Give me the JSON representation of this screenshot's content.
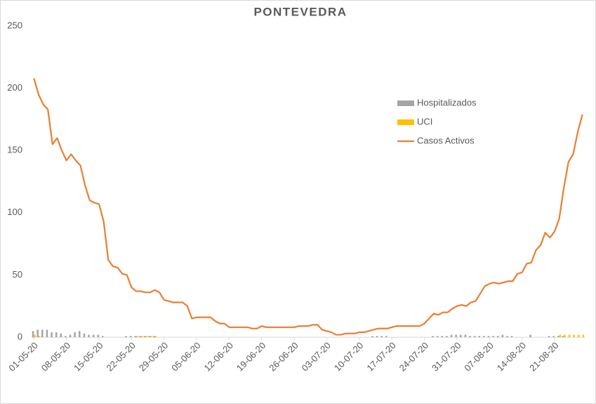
{
  "chart_data": {
    "type": "combo",
    "title": "PONTEVEDRA",
    "categories": [
      "01-05-20",
      null,
      null,
      null,
      null,
      null,
      null,
      "08-05-20",
      null,
      null,
      null,
      null,
      null,
      null,
      "15-05-20",
      null,
      null,
      null,
      null,
      null,
      null,
      "22-05-20",
      null,
      null,
      null,
      null,
      null,
      null,
      "29-05-20",
      null,
      null,
      null,
      null,
      null,
      null,
      "05-06-20",
      null,
      null,
      null,
      null,
      null,
      null,
      "12-06-20",
      null,
      null,
      null,
      null,
      null,
      null,
      "19-06-20",
      null,
      null,
      null,
      null,
      null,
      null,
      "26-06-20",
      null,
      null,
      null,
      null,
      null,
      null,
      "03-07-20",
      null,
      null,
      null,
      null,
      null,
      null,
      "10-07-20",
      null,
      null,
      null,
      null,
      null,
      null,
      "17-07-20",
      null,
      null,
      null,
      null,
      null,
      null,
      "24-07-20",
      null,
      null,
      null,
      null,
      null,
      null,
      "31-07-20",
      null,
      null,
      null,
      null,
      null,
      null,
      "07-08-20",
      null,
      null,
      null,
      null,
      null,
      null,
      "14-08-20",
      null,
      null,
      null,
      null,
      null,
      null,
      "21-08-20",
      null,
      null,
      null,
      null,
      null,
      null
    ],
    "series": [
      {
        "name": "Hospitalizados",
        "type": "bar",
        "color": "#a5a5a5",
        "values": [
          5,
          6,
          6,
          6,
          4,
          4,
          3,
          1,
          2,
          4,
          5,
          3,
          2,
          2,
          2,
          1,
          0,
          0,
          0,
          0,
          1,
          1,
          1,
          1,
          1,
          1,
          1,
          0,
          0,
          0,
          0,
          0,
          0,
          0,
          0,
          0,
          0,
          0,
          0,
          0,
          0,
          0,
          0,
          0,
          0,
          0,
          0,
          0,
          0,
          0,
          0,
          0,
          0,
          0,
          0,
          0,
          0,
          0,
          0,
          0,
          0,
          0,
          0,
          0,
          0,
          0,
          0,
          0,
          0,
          0,
          0,
          0,
          0,
          1,
          1,
          1,
          1,
          0,
          0,
          0,
          0,
          0,
          0,
          0,
          0,
          0,
          1,
          1,
          1,
          1,
          2,
          2,
          2,
          2,
          1,
          1,
          1,
          1,
          1,
          1,
          1,
          2,
          1,
          1,
          0,
          0,
          0,
          2,
          0,
          0,
          0,
          1,
          1,
          1,
          1,
          0,
          0,
          0,
          0
        ]
      },
      {
        "name": "UCI",
        "type": "bar",
        "color": "#ffc000",
        "values": [
          2,
          1,
          0,
          0,
          0,
          0,
          0,
          0,
          0,
          0,
          0,
          0,
          0,
          0,
          0,
          0,
          0,
          0,
          0,
          0,
          0,
          0,
          1,
          1,
          1,
          1,
          1,
          0,
          0,
          0,
          0,
          0,
          0,
          0,
          0,
          0,
          0,
          0,
          0,
          0,
          0,
          0,
          0,
          0,
          0,
          0,
          0,
          0,
          0,
          0,
          0,
          0,
          0,
          0,
          0,
          0,
          0,
          0,
          0,
          0,
          0,
          0,
          0,
          0,
          0,
          0,
          0,
          0,
          0,
          0,
          0,
          0,
          0,
          0,
          0,
          0,
          0,
          0,
          0,
          0,
          0,
          0,
          0,
          0,
          0,
          0,
          0,
          0,
          0,
          0,
          0,
          0,
          0,
          0,
          0,
          0,
          0,
          0,
          0,
          0,
          0,
          0,
          0,
          0,
          0,
          0,
          0,
          0,
          0,
          0,
          0,
          0,
          0,
          2,
          2,
          2,
          2,
          2,
          2
        ]
      },
      {
        "name": "Casos Activos",
        "type": "line",
        "color": "#ed7d31",
        "values": [
          208,
          195,
          187,
          183,
          155,
          160,
          150,
          142,
          147,
          142,
          138,
          122,
          110,
          108,
          107,
          93,
          62,
          57,
          56,
          51,
          50,
          40,
          37,
          37,
          36,
          36,
          38,
          36,
          30,
          29,
          28,
          28,
          28,
          25,
          15,
          16,
          16,
          16,
          16,
          13,
          11,
          11,
          8,
          8,
          8,
          8,
          8,
          7,
          7,
          9,
          8,
          8,
          8,
          8,
          8,
          8,
          8,
          9,
          9,
          9,
          10,
          10,
          6,
          5,
          4,
          2,
          2,
          3,
          3,
          3,
          4,
          4,
          5,
          6,
          7,
          7,
          7,
          8,
          9,
          9,
          9,
          9,
          9,
          9,
          11,
          15,
          19,
          18,
          20,
          20,
          23,
          25,
          26,
          25,
          28,
          29,
          35,
          41,
          43,
          44,
          43,
          44,
          45,
          45,
          51,
          52,
          59,
          60,
          70,
          74,
          84,
          80,
          85,
          95,
          120,
          141,
          147,
          165,
          179
        ]
      }
    ],
    "ylim": [
      0,
      250
    ],
    "yticks": [
      0,
      50,
      100,
      150,
      200,
      250
    ],
    "grid": false,
    "legend": "right"
  }
}
